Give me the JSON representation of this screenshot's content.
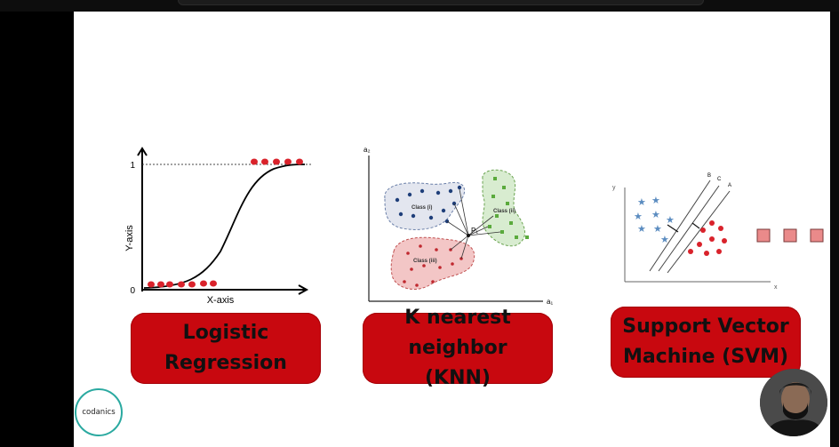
{
  "logistic": {
    "y_axis_label": "Y-axis",
    "x_axis_label": "X-axis",
    "tick_one": "1",
    "tick_zero": "0",
    "title_line1": "Logistic",
    "title_line2": "Regression"
  },
  "knn": {
    "axis_a2": "a₂",
    "axis_a1": "a₁",
    "class_i": "Class (i)",
    "class_ii": "Class (ii)",
    "class_iii": "Class (iii)",
    "point_label": "P₁",
    "title_line1": "K nearest neighbor",
    "title_line2": "(KNN)"
  },
  "svm": {
    "axis_y": "y",
    "axis_x": "x",
    "line_b": "B",
    "line_c": "C",
    "line_a": "A",
    "title_line1": "Support Vector",
    "title_line2": "Machine (SVM)"
  },
  "brand": {
    "logo_text": "codanics"
  },
  "colors": {
    "label_red": "#c8080f",
    "point_red": "#d9222b",
    "knn_blue": "#1f3f7a",
    "knn_green": "#5aaa3c",
    "svm_star": "#5b8cc0"
  }
}
